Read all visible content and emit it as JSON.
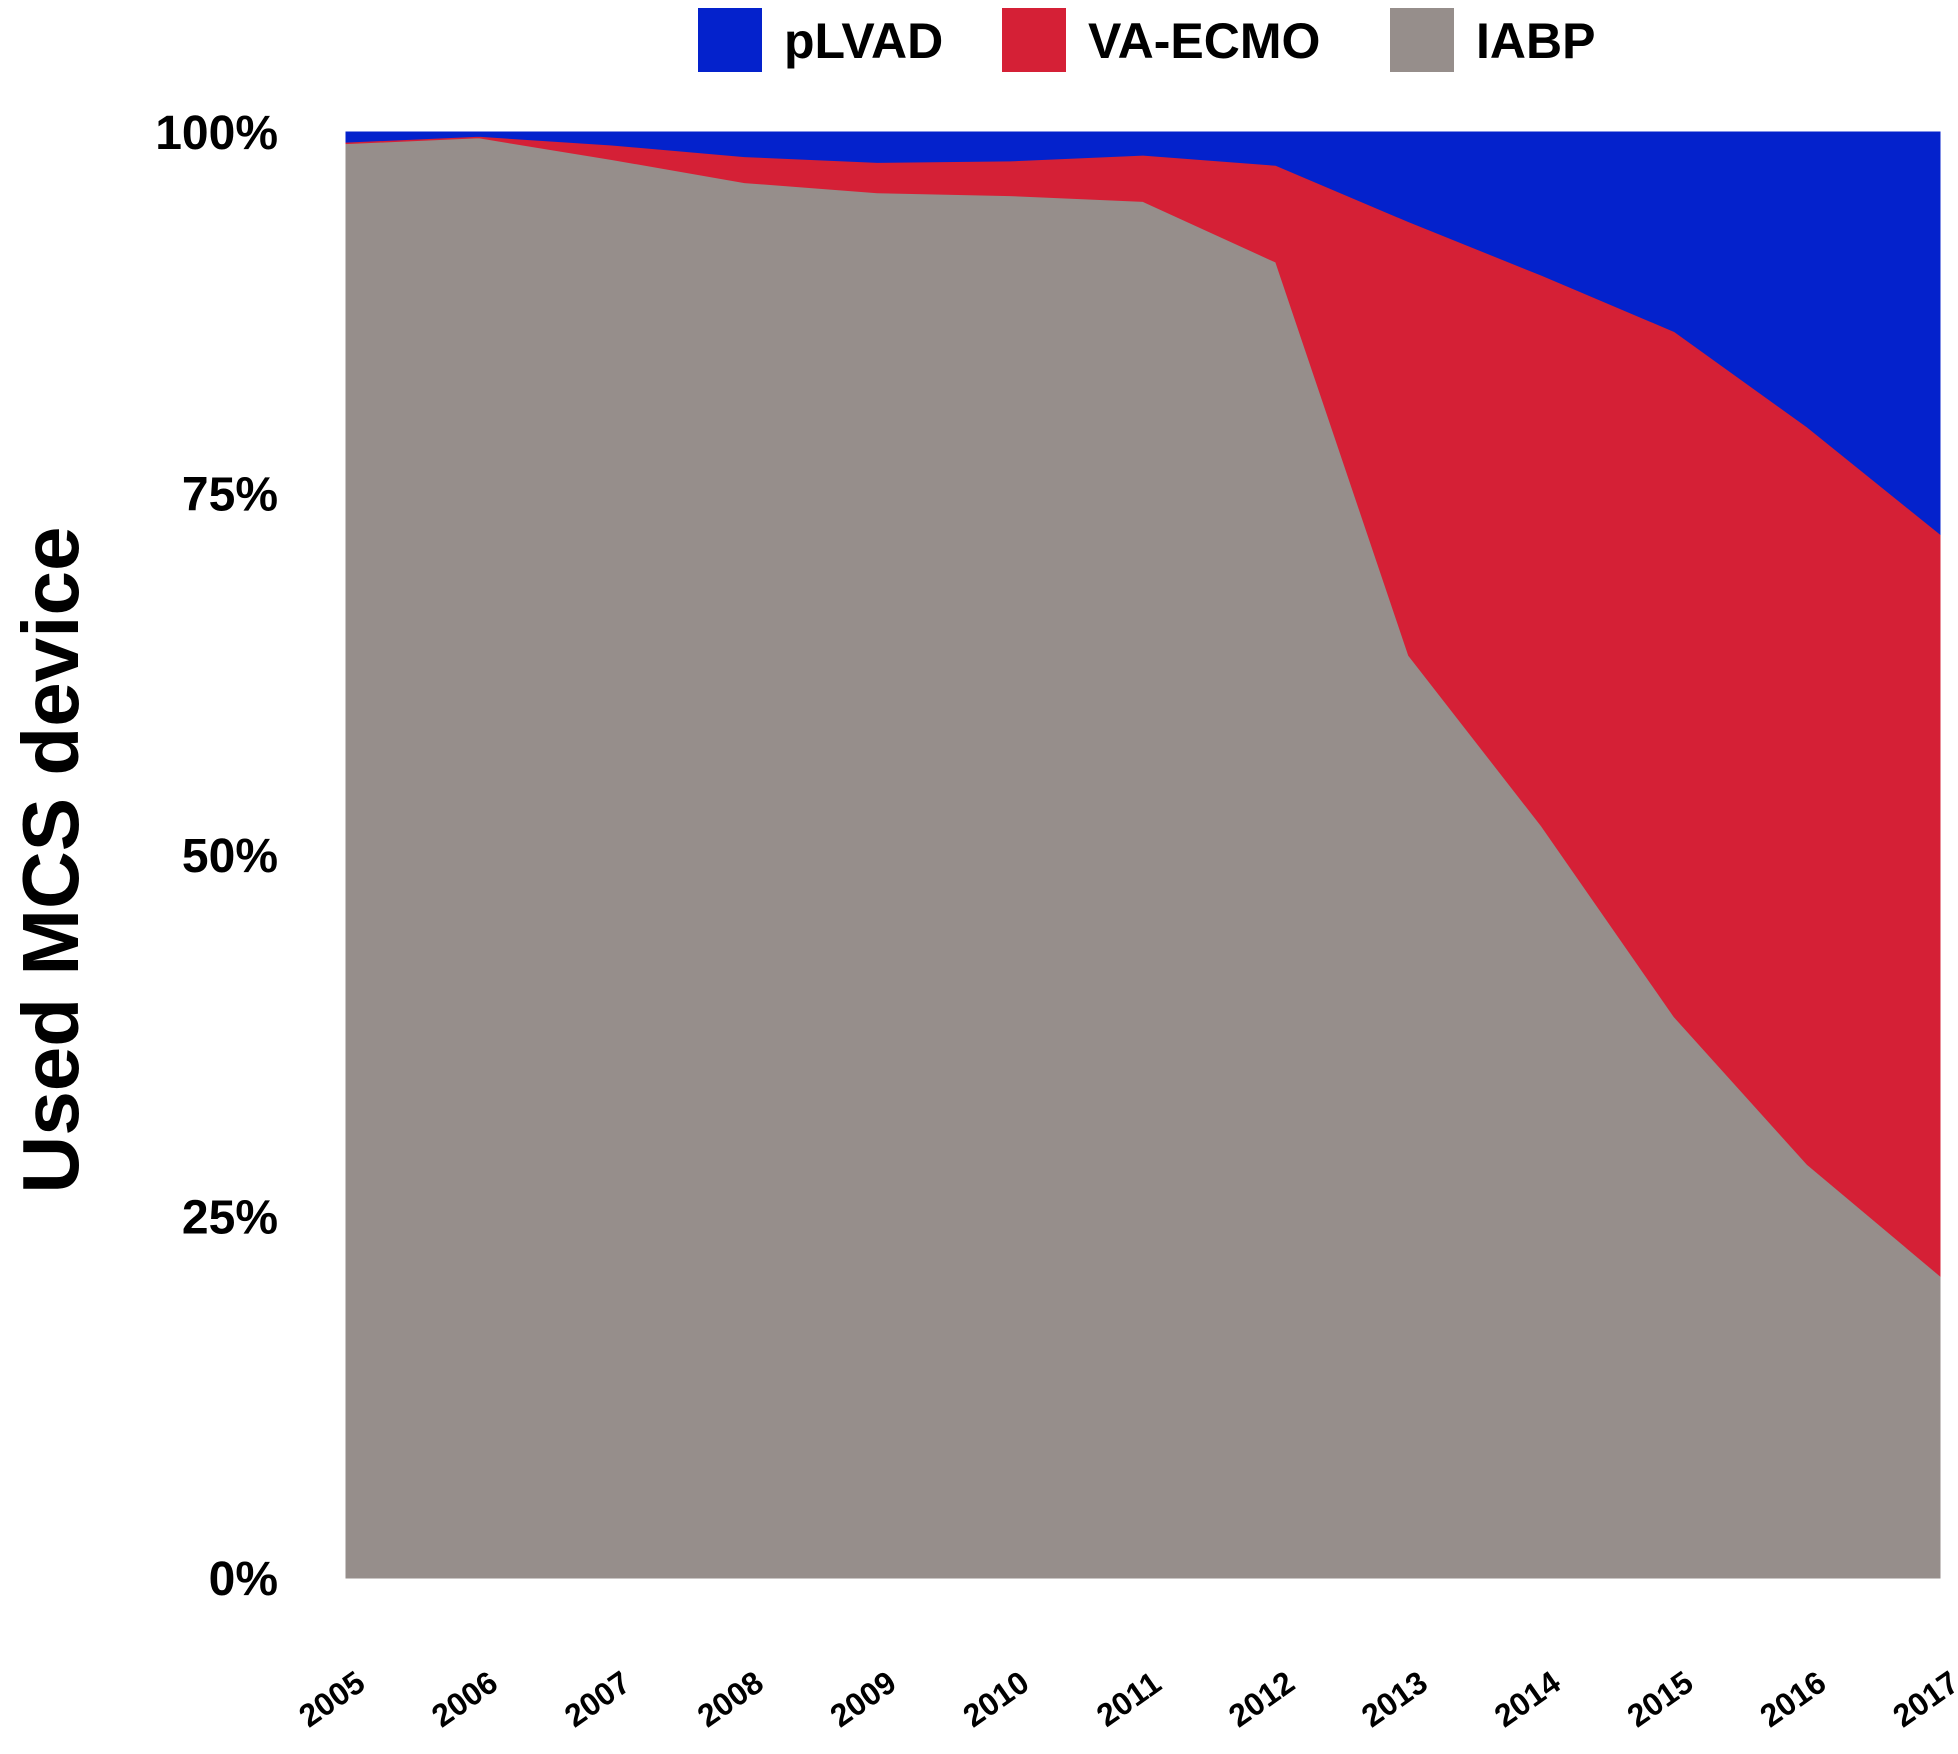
{
  "chart_data": {
    "type": "area",
    "stacked": true,
    "normalized": true,
    "title": "",
    "xlabel": "",
    "ylabel": "Used MCS device",
    "ylim": [
      0,
      100
    ],
    "y_tick_labels": [
      "0%",
      "25%",
      "50%",
      "75%",
      "100%"
    ],
    "y_tick_values": [
      0,
      25,
      50,
      75,
      100
    ],
    "x": [
      "2005",
      "2006",
      "2007",
      "2008",
      "2009",
      "2010",
      "2011",
      "2012",
      "2013",
      "2014",
      "2015",
      "2016",
      "2017"
    ],
    "grid": false,
    "legend_position": "top",
    "series": [
      {
        "name": "IABP",
        "color": "#968e8b",
        "values": [
          99.2,
          99.6,
          98.1,
          96.5,
          95.8,
          95.6,
          95.2,
          91.0,
          63.8,
          52.0,
          38.8,
          28.6,
          20.9
        ]
      },
      {
        "name": "VA-ECMO",
        "color": "#d52036",
        "values": [
          0.1,
          0.1,
          1.0,
          1.8,
          2.1,
          2.4,
          3.2,
          6.7,
          30.0,
          38.1,
          47.4,
          51.0,
          51.3
        ]
      },
      {
        "name": "pLVAD",
        "color": "#0422cc",
        "values": [
          0.7,
          0.3,
          0.9,
          1.7,
          2.1,
          2.0,
          1.6,
          2.3,
          6.2,
          9.9,
          13.8,
          20.4,
          27.8
        ]
      }
    ],
    "legend_order": [
      "pLVAD",
      "VA-ECMO",
      "IABP"
    ]
  }
}
